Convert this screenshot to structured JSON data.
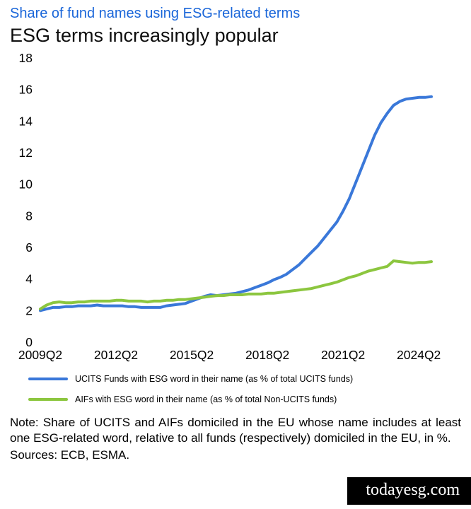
{
  "header": {
    "subtitle": "Share of fund names using ESG-related terms",
    "title": "ESG terms increasingly popular"
  },
  "chart_data": {
    "type": "line",
    "title": "ESG terms increasingly popular",
    "xlabel": "",
    "ylabel": "",
    "ylim": [
      0,
      18
    ],
    "yticks": [
      0,
      2,
      4,
      6,
      8,
      10,
      12,
      14,
      16,
      18
    ],
    "grid": false,
    "legend_position": "bottom",
    "x_unit": "quarter",
    "x_start": "2009Q2",
    "x_end": "2024Q4",
    "xticks": [
      {
        "label": "2009Q2",
        "index": 0
      },
      {
        "label": "2012Q2",
        "index": 12
      },
      {
        "label": "2015Q2",
        "index": 24
      },
      {
        "label": "2018Q2",
        "index": 36
      },
      {
        "label": "2021Q2",
        "index": 48
      },
      {
        "label": "2024Q2",
        "index": 60
      }
    ],
    "series": [
      {
        "name": "UCITS Funds with ESG word in their name (as % of total UCITS funds)",
        "color": "#3a78d9",
        "values": [
          2.0,
          2.1,
          2.2,
          2.2,
          2.25,
          2.25,
          2.3,
          2.3,
          2.3,
          2.35,
          2.3,
          2.3,
          2.3,
          2.3,
          2.25,
          2.25,
          2.2,
          2.2,
          2.2,
          2.2,
          2.3,
          2.35,
          2.4,
          2.45,
          2.6,
          2.75,
          2.9,
          3.0,
          2.95,
          3.0,
          3.05,
          3.1,
          3.2,
          3.3,
          3.45,
          3.6,
          3.75,
          3.95,
          4.1,
          4.3,
          4.6,
          4.9,
          5.3,
          5.7,
          6.1,
          6.6,
          7.1,
          7.6,
          8.3,
          9.1,
          10.1,
          11.1,
          12.1,
          13.1,
          13.9,
          14.5,
          15.0,
          15.25,
          15.4,
          15.45,
          15.5,
          15.5,
          15.55
        ]
      },
      {
        "name": "AIFs with ESG word in their name (as % of total Non-UCITS funds)",
        "color": "#8cc63f",
        "values": [
          2.1,
          2.35,
          2.5,
          2.55,
          2.5,
          2.5,
          2.55,
          2.55,
          2.6,
          2.6,
          2.6,
          2.6,
          2.65,
          2.65,
          2.6,
          2.6,
          2.6,
          2.55,
          2.6,
          2.6,
          2.65,
          2.65,
          2.7,
          2.7,
          2.75,
          2.8,
          2.85,
          2.9,
          2.95,
          2.95,
          3.0,
          3.0,
          3.0,
          3.05,
          3.05,
          3.05,
          3.1,
          3.1,
          3.15,
          3.2,
          3.25,
          3.3,
          3.35,
          3.4,
          3.5,
          3.6,
          3.7,
          3.8,
          3.95,
          4.1,
          4.2,
          4.35,
          4.5,
          4.6,
          4.7,
          4.8,
          5.15,
          5.1,
          5.05,
          5.0,
          5.05,
          5.05,
          5.1
        ]
      }
    ]
  },
  "note": {
    "text": "Note: Share of UCITS and AIFs domiciled in the EU whose name includes at least one ESG-related word, relative to all funds (respectively) domiciled in the EU, in %.",
    "sources": "Sources: ECB, ESMA."
  },
  "watermark": "todayesg.com",
  "colors": {
    "subtitle_blue": "#1a66d9",
    "ucits_line": "#3a78d9",
    "aifs_line": "#8cc63f",
    "watermark_bg": "#000000",
    "watermark_text": "#ffffff"
  }
}
